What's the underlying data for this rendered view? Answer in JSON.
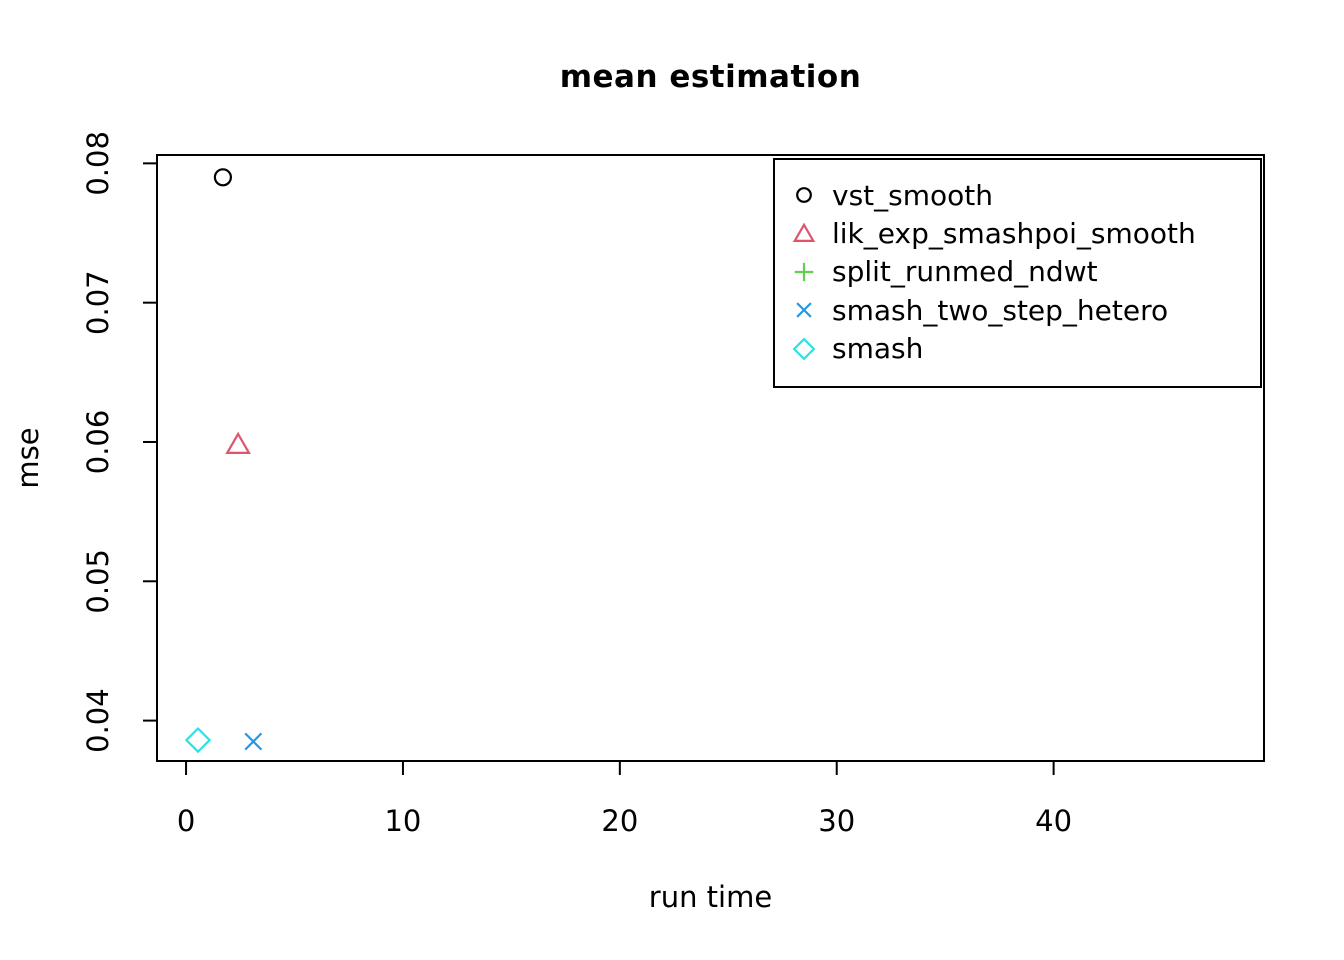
{
  "chart_data": {
    "type": "scatter",
    "title": "mean estimation",
    "xlabel": "run time",
    "ylabel": "mse",
    "xlim": [
      -1.34,
      49.7
    ],
    "ylim": [
      0.0371,
      0.0806
    ],
    "x_ticks": [
      0,
      10,
      20,
      30,
      40
    ],
    "y_ticks": [
      0.04,
      0.05,
      0.06,
      0.07,
      0.08
    ],
    "y_tick_labels": [
      "0.04",
      "0.05",
      "0.06",
      "0.07",
      "0.08"
    ],
    "grid": false,
    "legend_position": "top-right-inside",
    "axis_color": "#000000",
    "background": "#ffffff",
    "series": [
      {
        "name": "vst_smooth",
        "marker": "circle",
        "color": "#000000",
        "points": [
          {
            "x": 1.7,
            "y": 0.079
          }
        ]
      },
      {
        "name": "lik_exp_smashpoi_smooth",
        "marker": "triangle",
        "color": "#DF536B",
        "points": [
          {
            "x": 2.4,
            "y": 0.0598
          }
        ]
      },
      {
        "name": "split_runmed_ndwt",
        "marker": "plus",
        "color": "#61D04F",
        "points": []
      },
      {
        "name": "smash_two_step_hetero",
        "marker": "x",
        "color": "#2297E6",
        "points": [
          {
            "x": 3.1,
            "y": 0.0385
          }
        ]
      },
      {
        "name": "smash",
        "marker": "diamond",
        "color": "#28E2E5",
        "points": [
          {
            "x": 0.55,
            "y": 0.0386
          }
        ]
      }
    ]
  }
}
